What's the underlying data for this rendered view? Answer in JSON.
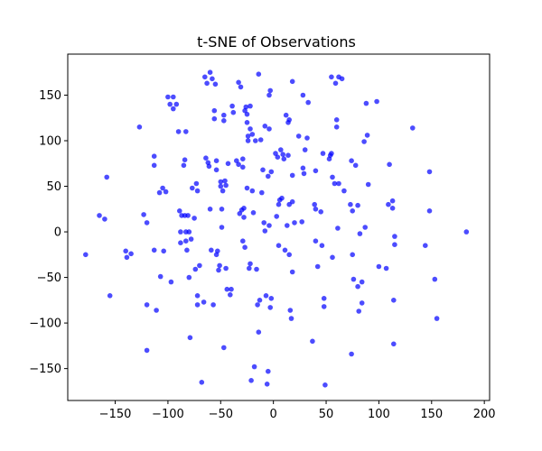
{
  "chart_data": {
    "type": "scatter",
    "title": "t-SNE of Observations",
    "xlabel": "",
    "ylabel": "",
    "xlim": [
      -195,
      205
    ],
    "ylim": [
      -185,
      195
    ],
    "xticks": [
      -150,
      -100,
      -50,
      0,
      50,
      100,
      150,
      200
    ],
    "yticks": [
      -150,
      -100,
      -50,
      0,
      50,
      100,
      150
    ],
    "xtick_labels": [
      "−150",
      "−100",
      "−50",
      "0",
      "50",
      "100",
      "150",
      "200"
    ],
    "ytick_labels": [
      "−150",
      "−100",
      "−50",
      "0",
      "50",
      "100",
      "150"
    ],
    "grid": false,
    "legend": "none",
    "point_color": "#0000ff",
    "series": [
      {
        "points": [
          [
            -178,
            -25
          ],
          [
            -165,
            18
          ],
          [
            -160,
            14
          ],
          [
            -158,
            60
          ],
          [
            -155,
            -70
          ],
          [
            -140,
            -21
          ],
          [
            -139,
            -28
          ],
          [
            -135,
            -24
          ],
          [
            -127,
            115
          ],
          [
            -123,
            19
          ],
          [
            -120,
            10
          ],
          [
            -120,
            -80
          ],
          [
            -120,
            -130
          ],
          [
            -113,
            83
          ],
          [
            -113,
            73
          ],
          [
            -113,
            -20
          ],
          [
            -111,
            -86
          ],
          [
            -108,
            43
          ],
          [
            -107,
            -49
          ],
          [
            -105,
            48
          ],
          [
            -104,
            -21
          ],
          [
            -102,
            44
          ],
          [
            -100,
            148
          ],
          [
            -98,
            140
          ],
          [
            -97,
            -55
          ],
          [
            -95,
            135
          ],
          [
            -95,
            148
          ],
          [
            -92,
            140
          ],
          [
            -90,
            110
          ],
          [
            -89,
            23
          ],
          [
            -88,
            0
          ],
          [
            -88,
            -12
          ],
          [
            -87,
            18
          ],
          [
            -85,
            73
          ],
          [
            -84,
            79
          ],
          [
            -84,
            18
          ],
          [
            -83,
            110
          ],
          [
            -83,
            0
          ],
          [
            -83,
            -10
          ],
          [
            -82,
            -20
          ],
          [
            -81,
            18
          ],
          [
            -80,
            0
          ],
          [
            -80,
            -50
          ],
          [
            -79,
            -116
          ],
          [
            -78,
            -8
          ],
          [
            -77,
            48
          ],
          [
            -75,
            15
          ],
          [
            -74,
            -41
          ],
          [
            -73,
            53
          ],
          [
            -72,
            45
          ],
          [
            -72,
            -70
          ],
          [
            -72,
            -80
          ],
          [
            -70,
            -37
          ],
          [
            -68,
            -165
          ],
          [
            -66,
            -77
          ],
          [
            -65,
            170
          ],
          [
            -64,
            81
          ],
          [
            -63,
            163
          ],
          [
            -62,
            76
          ],
          [
            -61,
            72
          ],
          [
            -60,
            175
          ],
          [
            -60,
            25
          ],
          [
            -59,
            -20
          ],
          [
            -58,
            168
          ],
          [
            -57,
            -80
          ],
          [
            -56,
            133
          ],
          [
            -56,
            124
          ],
          [
            -55,
            162
          ],
          [
            -54,
            78
          ],
          [
            -54,
            68
          ],
          [
            -54,
            -25
          ],
          [
            -53,
            -21
          ],
          [
            -52,
            -42
          ],
          [
            -51,
            -37
          ],
          [
            -50,
            55
          ],
          [
            -50,
            50
          ],
          [
            -49,
            25
          ],
          [
            -49,
            5
          ],
          [
            -48,
            45
          ],
          [
            -47,
            128
          ],
          [
            -47,
            122
          ],
          [
            -47,
            -127
          ],
          [
            -46,
            56
          ],
          [
            -45,
            51
          ],
          [
            -45,
            -40
          ],
          [
            -44,
            -63
          ],
          [
            -43,
            75
          ],
          [
            -41,
            -69
          ],
          [
            -40,
            -63
          ],
          [
            -39,
            138
          ],
          [
            -38,
            131
          ],
          [
            -35,
            78
          ],
          [
            -33,
            164
          ],
          [
            -33,
            74
          ],
          [
            -32,
            20
          ],
          [
            -31,
            159
          ],
          [
            -30,
            24
          ],
          [
            -29,
            80
          ],
          [
            -29,
            71
          ],
          [
            -29,
            -10
          ],
          [
            -28,
            16
          ],
          [
            -28,
            26
          ],
          [
            -27,
            133
          ],
          [
            -27,
            -17
          ],
          [
            -26,
            137
          ],
          [
            -25,
            129
          ],
          [
            -25,
            120
          ],
          [
            -25,
            48
          ],
          [
            -24,
            105
          ],
          [
            -24,
            100
          ],
          [
            -23,
            -40
          ],
          [
            -22,
            138
          ],
          [
            -22,
            113
          ],
          [
            -22,
            -35
          ],
          [
            -21,
            -163
          ],
          [
            -20,
            107
          ],
          [
            -20,
            45
          ],
          [
            -19,
            21
          ],
          [
            -18,
            -148
          ],
          [
            -17,
            100
          ],
          [
            -16,
            -41
          ],
          [
            -15,
            -80
          ],
          [
            -14,
            173
          ],
          [
            -14,
            -110
          ],
          [
            -13,
            -75
          ],
          [
            -12,
            101
          ],
          [
            -11,
            43
          ],
          [
            -10,
            68
          ],
          [
            -9,
            10
          ],
          [
            -8,
            116
          ],
          [
            -8,
            1
          ],
          [
            -7,
            -70
          ],
          [
            -6,
            -167
          ],
          [
            -5,
            61
          ],
          [
            -5,
            -153
          ],
          [
            -4,
            150
          ],
          [
            -4,
            113
          ],
          [
            -4,
            7
          ],
          [
            -3,
            155
          ],
          [
            -3,
            -83
          ],
          [
            -2,
            66
          ],
          [
            -2,
            -73
          ],
          [
            2,
            86
          ],
          [
            3,
            17
          ],
          [
            4,
            82
          ],
          [
            5,
            30
          ],
          [
            5,
            -15
          ],
          [
            6,
            35
          ],
          [
            7,
            90
          ],
          [
            8,
            37
          ],
          [
            9,
            85
          ],
          [
            10,
            80
          ],
          [
            11,
            -20
          ],
          [
            12,
            128
          ],
          [
            13,
            7
          ],
          [
            14,
            120
          ],
          [
            14,
            84
          ],
          [
            15,
            123
          ],
          [
            15,
            30
          ],
          [
            15,
            -25
          ],
          [
            16,
            -86
          ],
          [
            17,
            -95
          ],
          [
            18,
            165
          ],
          [
            18,
            62
          ],
          [
            18,
            -44
          ],
          [
            18,
            33
          ],
          [
            20,
            10
          ],
          [
            24,
            105
          ],
          [
            27,
            11
          ],
          [
            28,
            150
          ],
          [
            28,
            70
          ],
          [
            29,
            64
          ],
          [
            30,
            90
          ],
          [
            32,
            103
          ],
          [
            33,
            142
          ],
          [
            37,
            -120
          ],
          [
            39,
            30
          ],
          [
            40,
            67
          ],
          [
            40,
            25
          ],
          [
            40,
            -10
          ],
          [
            42,
            -38
          ],
          [
            45,
            22
          ],
          [
            46,
            -15
          ],
          [
            47,
            86
          ],
          [
            48,
            -73
          ],
          [
            48,
            -82
          ],
          [
            49,
            -168
          ],
          [
            53,
            80
          ],
          [
            54,
            84
          ],
          [
            55,
            170
          ],
          [
            55,
            86
          ],
          [
            56,
            60
          ],
          [
            56,
            -28
          ],
          [
            58,
            53
          ],
          [
            59,
            163
          ],
          [
            60,
            123
          ],
          [
            60,
            115
          ],
          [
            61,
            4
          ],
          [
            62,
            170
          ],
          [
            62,
            53
          ],
          [
            65,
            168
          ],
          [
            67,
            45
          ],
          [
            73,
            30
          ],
          [
            74,
            78
          ],
          [
            74,
            -134
          ],
          [
            75,
            23
          ],
          [
            75,
            -25
          ],
          [
            76,
            -52
          ],
          [
            78,
            73
          ],
          [
            80,
            29
          ],
          [
            80,
            -60
          ],
          [
            81,
            -87
          ],
          [
            82,
            -2
          ],
          [
            84,
            -55
          ],
          [
            84,
            -78
          ],
          [
            86,
            99
          ],
          [
            87,
            5
          ],
          [
            88,
            141
          ],
          [
            89,
            106
          ],
          [
            90,
            52
          ],
          [
            98,
            143
          ],
          [
            100,
            -38
          ],
          [
            107,
            -40
          ],
          [
            109,
            30
          ],
          [
            110,
            74
          ],
          [
            113,
            34
          ],
          [
            113,
            26
          ],
          [
            114,
            -75
          ],
          [
            114,
            -123
          ],
          [
            115,
            -5
          ],
          [
            115,
            -14
          ],
          [
            132,
            114
          ],
          [
            144,
            -15
          ],
          [
            148,
            66
          ],
          [
            148,
            23
          ],
          [
            153,
            -52
          ],
          [
            155,
            -95
          ],
          [
            183,
            0
          ]
        ]
      }
    ]
  }
}
